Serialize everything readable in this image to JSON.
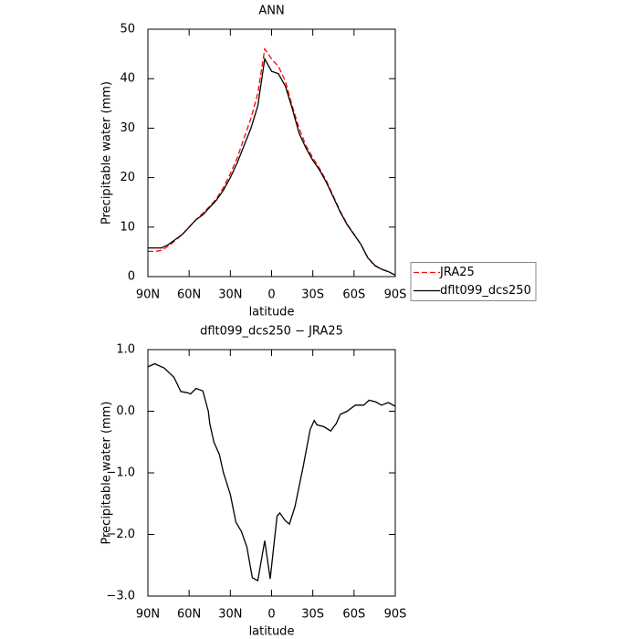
{
  "chart_data": [
    {
      "type": "line",
      "title": "ANN",
      "xlabel": "latitude",
      "ylabel": "Precipitable water (mm)",
      "x": [
        90,
        85,
        80,
        75,
        70,
        65,
        60,
        55,
        50,
        45,
        40,
        35,
        30,
        25,
        20,
        15,
        10,
        5,
        0,
        -5,
        -10,
        -15,
        -20,
        -25,
        -30,
        -35,
        -40,
        -45,
        -50,
        -55,
        -60,
        -65,
        -70,
        -75,
        -80,
        -85,
        -90
      ],
      "series": [
        {
          "name": "JRA25",
          "color": "#ff0000",
          "line_style": "dashed",
          "values": [
            5.1,
            5.1,
            5.3,
            6.2,
            7.3,
            8.5,
            10,
            11.5,
            12.8,
            14.2,
            15.8,
            18,
            20.8,
            24,
            28,
            32,
            37,
            46,
            44,
            42.5,
            39.5,
            34.5,
            30,
            26.5,
            24,
            21.8,
            19.3,
            16.2,
            13.2,
            10.6,
            8.6,
            6.5,
            3.8,
            2.2,
            1.5,
            1.0,
            0.3
          ]
        },
        {
          "name": "dflt099_dcs250",
          "color": "#000000",
          "line_style": "solid",
          "values": [
            5.8,
            5.8,
            5.8,
            6.5,
            7.5,
            8.5,
            10,
            11.5,
            12.5,
            14,
            15.5,
            17.5,
            20,
            23,
            26.5,
            30,
            34.5,
            44,
            41.5,
            41,
            38.5,
            34,
            29,
            26,
            23.5,
            21.5,
            19,
            16,
            13,
            10.5,
            8.5,
            6.5,
            3.8,
            2.3,
            1.5,
            1.0,
            0.3
          ]
        }
      ],
      "xlim": [
        90,
        -90
      ],
      "xticks": [
        {
          "value": 90,
          "label": "90N"
        },
        {
          "value": 60,
          "label": "60N"
        },
        {
          "value": 30,
          "label": "30N"
        },
        0,
        {
          "value": -30,
          "label": "30S"
        },
        {
          "value": -60,
          "label": "60S"
        },
        {
          "value": -90,
          "label": "90S"
        }
      ],
      "ylim": [
        0,
        50
      ],
      "yticks": [
        0,
        10,
        20,
        30,
        40,
        50
      ],
      "legend": "right"
    },
    {
      "type": "line",
      "title": "dflt099_dcs250 − JRA25",
      "xlabel": "latitude",
      "ylabel": "Precipitable water (mm)",
      "x": [
        90,
        85,
        78,
        71,
        66,
        61,
        59,
        55,
        50,
        46,
        45,
        42,
        38,
        35,
        30,
        26,
        22,
        18,
        14,
        10,
        5,
        1,
        -4,
        -6,
        -10,
        -13,
        -17,
        -23,
        -28,
        -31,
        -33,
        -38,
        -43,
        -47,
        -50,
        -55,
        -61,
        -67,
        -71,
        -76,
        -80,
        -85,
        -90
      ],
      "series": [
        {
          "name": "dflt099_dcs250 − JRA25",
          "color": "#000000",
          "line_style": "solid",
          "values": [
            0.72,
            0.77,
            0.7,
            0.55,
            0.32,
            0.3,
            0.28,
            0.37,
            0.33,
            0.0,
            -0.2,
            -0.5,
            -0.7,
            -1.0,
            -1.35,
            -1.8,
            -1.95,
            -2.2,
            -2.7,
            -2.75,
            -2.1,
            -2.72,
            -1.7,
            -1.65,
            -1.78,
            -1.83,
            -1.55,
            -0.9,
            -0.3,
            -0.15,
            -0.22,
            -0.25,
            -0.32,
            -0.2,
            -0.05,
            0.0,
            0.1,
            0.1,
            0.18,
            0.15,
            0.1,
            0.14,
            0.08
          ]
        }
      ],
      "xlim": [
        90,
        -90
      ],
      "xticks": [
        {
          "value": 90,
          "label": "90N"
        },
        {
          "value": 60,
          "label": "60N"
        },
        {
          "value": 30,
          "label": "30N"
        },
        0,
        {
          "value": -30,
          "label": "30S"
        },
        {
          "value": -60,
          "label": "60S"
        },
        {
          "value": -90,
          "label": "90S"
        }
      ],
      "ylim": [
        -3,
        1
      ],
      "yticks": [
        {
          "value": -3,
          "label": "−3.0"
        },
        {
          "value": -2,
          "label": "−2.0"
        },
        {
          "value": -1,
          "label": "−1.0"
        },
        {
          "value": 0,
          "label": "0.0"
        },
        {
          "value": 1,
          "label": "1.0"
        }
      ]
    }
  ]
}
